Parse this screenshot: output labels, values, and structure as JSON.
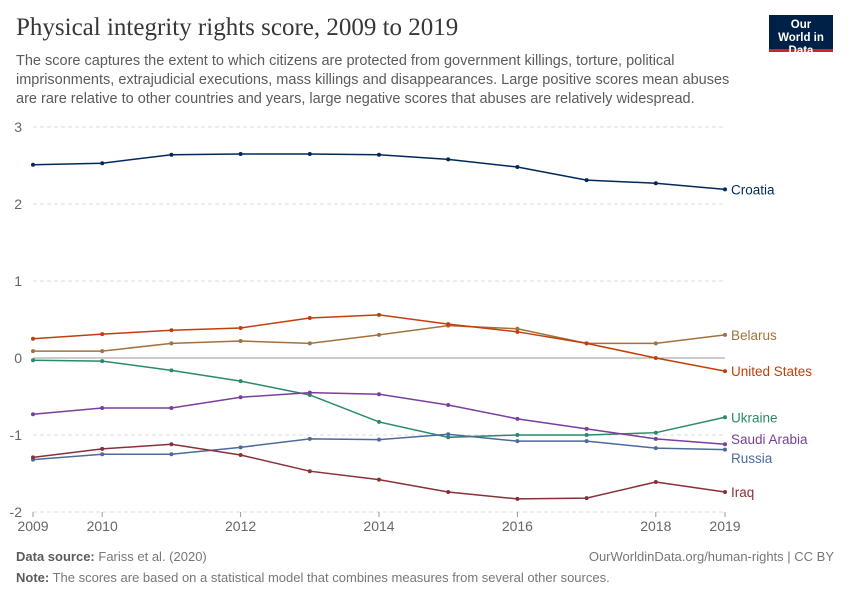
{
  "header": {
    "title": "Physical integrity rights score, 2009 to 2019",
    "subtitle": "The score captures the extent to which citizens are protected from government killings, torture, political imprisonments, extrajudicial executions, mass killings and disappearances. Large positive scores mean abuses are rare relative to other countries and years, large negative scores that abuses are relatively widespread.",
    "logo": "Our World in Data"
  },
  "footer": {
    "source_label": "Data source:",
    "source": "Fariss et al. (2020)",
    "link": "OurWorldinData.org/human-rights | CC BY",
    "note_label": "Note:",
    "note": "The scores are based on a statistical model that combines measures from several other sources."
  },
  "chart_data": {
    "type": "line",
    "xlim": [
      2009,
      2019
    ],
    "ylim": [
      -2,
      3
    ],
    "yticks": [
      -2,
      -1,
      0,
      1,
      2,
      3
    ],
    "xticks": [
      2009,
      2010,
      2012,
      2014,
      2016,
      2018,
      2019
    ],
    "grid": "horizontal dashed",
    "legend": "inline-right",
    "x": [
      2009,
      2010,
      2011,
      2012,
      2013,
      2014,
      2015,
      2016,
      2017,
      2018,
      2019
    ],
    "series": [
      {
        "name": "Croatia",
        "color": "#00295b",
        "values": [
          2.51,
          2.53,
          2.64,
          2.65,
          2.65,
          2.64,
          2.58,
          2.48,
          2.31,
          2.27,
          2.19
        ]
      },
      {
        "name": "Belarus",
        "color": "#a2723e",
        "values": [
          0.09,
          0.09,
          0.19,
          0.22,
          0.19,
          0.3,
          0.42,
          0.38,
          0.19,
          0.19,
          0.3
        ]
      },
      {
        "name": "United States",
        "color": "#c13f0c",
        "values": [
          0.25,
          0.31,
          0.36,
          0.39,
          0.52,
          0.56,
          0.44,
          0.34,
          0.19,
          0.0,
          -0.17
        ]
      },
      {
        "name": "Ukraine",
        "color": "#2a8a6a",
        "values": [
          -0.03,
          -0.04,
          -0.16,
          -0.3,
          -0.48,
          -0.83,
          -1.03,
          -1.0,
          -1.0,
          -0.97,
          -0.77
        ]
      },
      {
        "name": "Saudi Arabia",
        "color": "#7a3e9e",
        "values": [
          -0.73,
          -0.65,
          -0.65,
          -0.51,
          -0.45,
          -0.47,
          -0.61,
          -0.79,
          -0.92,
          -1.05,
          -1.12
        ]
      },
      {
        "name": "Russia",
        "color": "#4c6a9c",
        "values": [
          -1.32,
          -1.25,
          -1.25,
          -1.16,
          -1.05,
          -1.06,
          -0.99,
          -1.08,
          -1.08,
          -1.17,
          -1.19
        ]
      },
      {
        "name": "Iraq",
        "color": "#883039",
        "values": [
          -1.29,
          -1.18,
          -1.12,
          -1.26,
          -1.47,
          -1.58,
          -1.74,
          -1.83,
          -1.82,
          -1.61,
          -1.74
        ]
      }
    ],
    "label_values": {
      "Croatia": 2.19,
      "Belarus": 0.3,
      "United States": -0.17,
      "Ukraine": -0.77,
      "Saudi Arabia": -1.05,
      "Russia": -1.3,
      "Iraq": -1.74
    }
  }
}
